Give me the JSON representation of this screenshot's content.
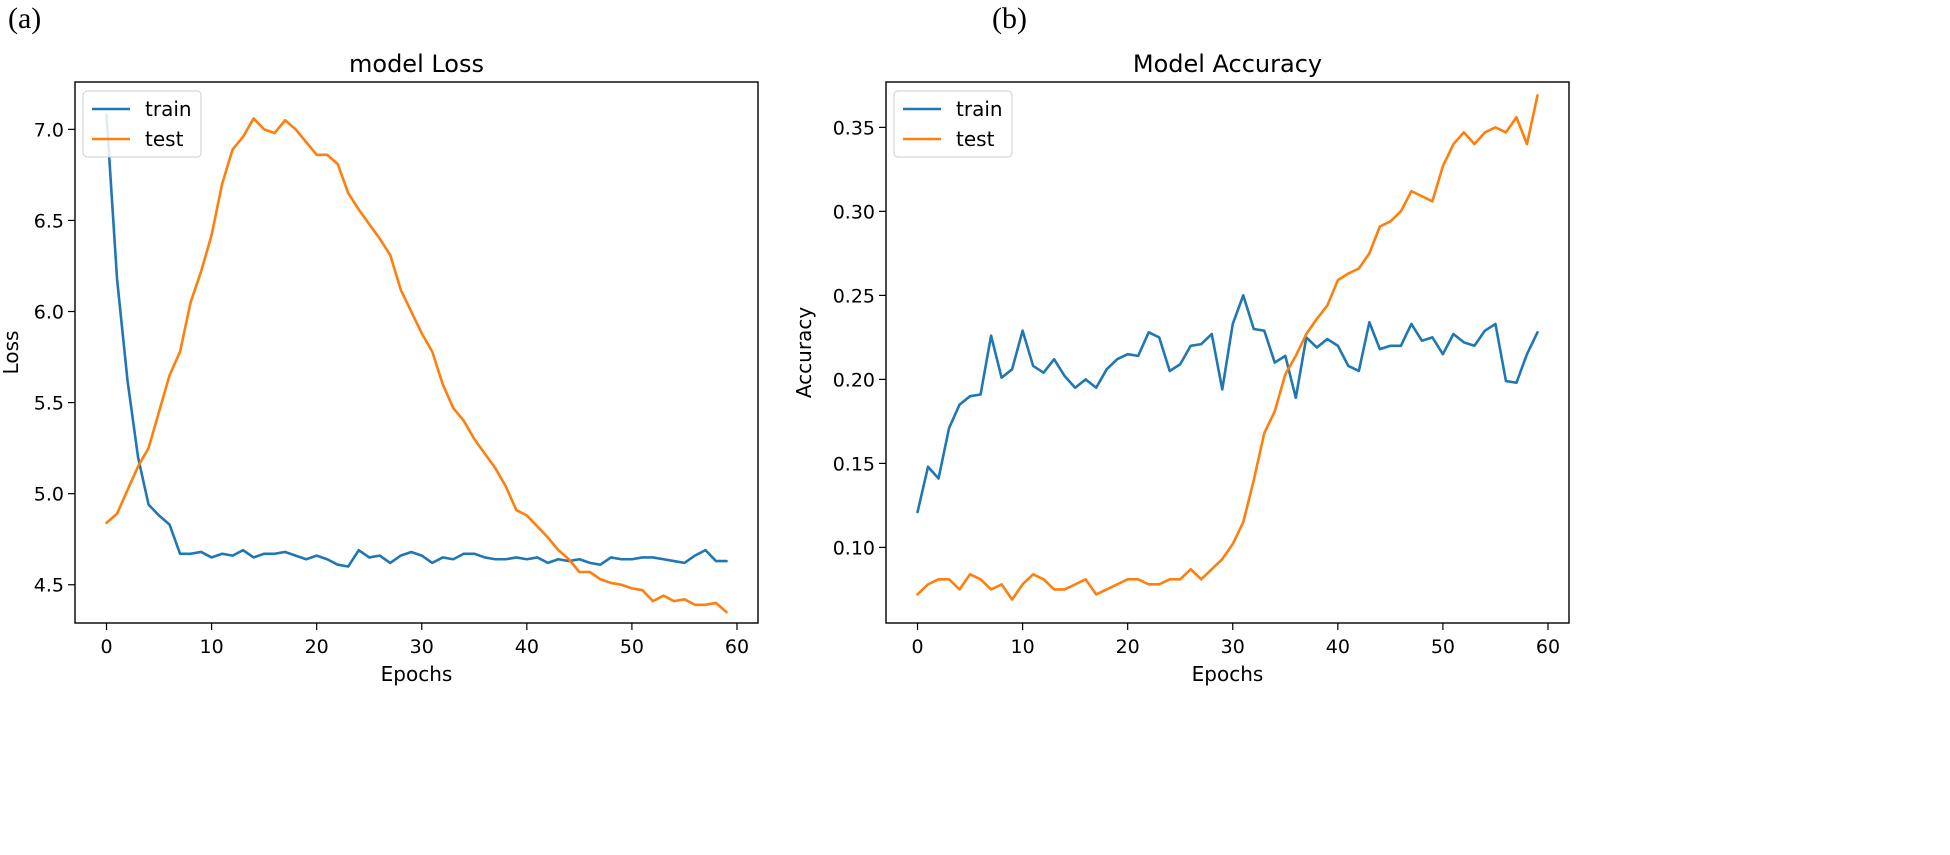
{
  "panels": [
    "(a)",
    "(b)"
  ],
  "chart_data": [
    {
      "type": "line",
      "title": "model Loss",
      "xlabel": "Epochs",
      "ylabel": "Loss",
      "xlim": [
        -3,
        62
      ],
      "ylim": [
        4.29,
        7.26
      ],
      "xticks": [
        0,
        10,
        20,
        30,
        40,
        50,
        60
      ],
      "xtick_labels": [
        "0",
        "10",
        "20",
        "30",
        "40",
        "50",
        "60"
      ],
      "yticks": [
        4.5,
        5.0,
        5.5,
        6.0,
        6.5,
        7.0
      ],
      "ytick_labels": [
        "4.5",
        "5.0",
        "5.5",
        "6.0",
        "6.5",
        "7.0"
      ],
      "legend_position": "top-left",
      "grid": false,
      "x": [
        0,
        1,
        2,
        3,
        4,
        5,
        6,
        7,
        8,
        9,
        10,
        11,
        12,
        13,
        14,
        15,
        16,
        17,
        18,
        19,
        20,
        21,
        22,
        23,
        24,
        25,
        26,
        27,
        28,
        29,
        30,
        31,
        32,
        33,
        34,
        35,
        36,
        37,
        38,
        39,
        40,
        41,
        42,
        43,
        44,
        45,
        46,
        47,
        48,
        49,
        50,
        51,
        52,
        53,
        54,
        55,
        56,
        57,
        58,
        59
      ],
      "series": [
        {
          "name": "train",
          "color": "#1f77b4",
          "values": [
            7.08,
            6.18,
            5.62,
            5.2,
            4.94,
            4.88,
            4.83,
            4.67,
            4.67,
            4.68,
            4.65,
            4.67,
            4.66,
            4.69,
            4.65,
            4.67,
            4.67,
            4.68,
            4.66,
            4.64,
            4.66,
            4.64,
            4.61,
            4.6,
            4.69,
            4.65,
            4.66,
            4.62,
            4.66,
            4.68,
            4.66,
            4.62,
            4.65,
            4.64,
            4.67,
            4.67,
            4.65,
            4.64,
            4.64,
            4.65,
            4.64,
            4.65,
            4.62,
            4.64,
            4.63,
            4.64,
            4.62,
            4.61,
            4.65,
            4.64,
            4.64,
            4.65,
            4.65,
            4.64,
            4.63,
            4.62,
            4.66,
            4.69,
            4.63,
            4.63
          ]
        },
        {
          "name": "test",
          "color": "#ff7f0e",
          "values": [
            4.84,
            4.89,
            5.02,
            5.15,
            5.25,
            5.45,
            5.65,
            5.78,
            6.05,
            6.22,
            6.42,
            6.7,
            6.89,
            6.96,
            7.06,
            7.0,
            6.98,
            7.05,
            7.0,
            6.93,
            6.86,
            6.86,
            6.81,
            6.65,
            6.56,
            6.48,
            6.4,
            6.31,
            6.12,
            6.0,
            5.88,
            5.78,
            5.6,
            5.47,
            5.4,
            5.3,
            5.22,
            5.14,
            5.04,
            4.91,
            4.88,
            4.82,
            4.76,
            4.69,
            4.64,
            4.57,
            4.57,
            4.53,
            4.51,
            4.5,
            4.48,
            4.47,
            4.41,
            4.44,
            4.41,
            4.42,
            4.39,
            4.39,
            4.4,
            4.35
          ]
        }
      ]
    },
    {
      "type": "line",
      "title": "Model Accuracy",
      "xlabel": "Epochs",
      "ylabel": "Accuracy",
      "xlim": [
        -3,
        62
      ],
      "ylim": [
        0.055,
        0.377
      ],
      "xticks": [
        0,
        10,
        20,
        30,
        40,
        50,
        60
      ],
      "xtick_labels": [
        "0",
        "10",
        "20",
        "30",
        "40",
        "50",
        "60"
      ],
      "yticks": [
        0.1,
        0.15,
        0.2,
        0.25,
        0.3,
        0.35
      ],
      "ytick_labels": [
        "0.10",
        "0.15",
        "0.20",
        "0.25",
        "0.30",
        "0.35"
      ],
      "legend_position": "top-left",
      "grid": false,
      "x": [
        0,
        1,
        2,
        3,
        4,
        5,
        6,
        7,
        8,
        9,
        10,
        11,
        12,
        13,
        14,
        15,
        16,
        17,
        18,
        19,
        20,
        21,
        22,
        23,
        24,
        25,
        26,
        27,
        28,
        29,
        30,
        31,
        32,
        33,
        34,
        35,
        36,
        37,
        38,
        39,
        40,
        41,
        42,
        43,
        44,
        45,
        46,
        47,
        48,
        49,
        50,
        51,
        52,
        53,
        54,
        55,
        56,
        57,
        58,
        59
      ],
      "series": [
        {
          "name": "train",
          "color": "#1f77b4",
          "values": [
            0.121,
            0.148,
            0.141,
            0.171,
            0.185,
            0.19,
            0.191,
            0.226,
            0.201,
            0.206,
            0.229,
            0.208,
            0.204,
            0.212,
            0.202,
            0.195,
            0.2,
            0.195,
            0.206,
            0.212,
            0.215,
            0.214,
            0.228,
            0.225,
            0.205,
            0.209,
            0.22,
            0.221,
            0.227,
            0.194,
            0.233,
            0.25,
            0.23,
            0.229,
            0.21,
            0.214,
            0.189,
            0.225,
            0.219,
            0.224,
            0.22,
            0.208,
            0.205,
            0.234,
            0.218,
            0.22,
            0.22,
            0.233,
            0.223,
            0.225,
            0.215,
            0.227,
            0.222,
            0.22,
            0.229,
            0.233,
            0.199,
            0.198,
            0.215,
            0.228
          ]
        },
        {
          "name": "test",
          "color": "#ff7f0e",
          "values": [
            0.072,
            0.078,
            0.081,
            0.081,
            0.075,
            0.084,
            0.081,
            0.075,
            0.078,
            0.069,
            0.078,
            0.084,
            0.081,
            0.075,
            0.075,
            0.078,
            0.081,
            0.072,
            0.075,
            0.078,
            0.081,
            0.081,
            0.078,
            0.078,
            0.081,
            0.081,
            0.087,
            0.081,
            0.087,
            0.093,
            0.102,
            0.115,
            0.14,
            0.168,
            0.181,
            0.203,
            0.214,
            0.227,
            0.236,
            0.244,
            0.259,
            0.263,
            0.266,
            0.275,
            0.291,
            0.294,
            0.3,
            0.312,
            0.309,
            0.306,
            0.327,
            0.34,
            0.347,
            0.34,
            0.347,
            0.35,
            0.347,
            0.356,
            0.34,
            0.369
          ]
        }
      ]
    }
  ]
}
